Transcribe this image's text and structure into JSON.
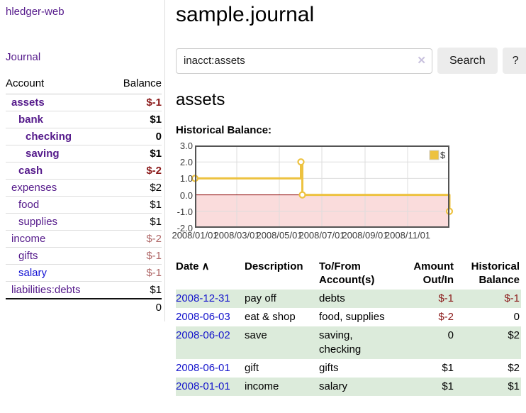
{
  "colors": {
    "brand_purple": "#551a8b",
    "link_blue": "#1414d4",
    "negative_strong": "#8b1a1a",
    "negative_soft": "#b06868",
    "row_stripe_green": "#dcebdb",
    "series_gold": "#edc240",
    "negative_region_pink": "#fadcdc",
    "zero_line_red": "#8b0000",
    "grid_gray": "#dddddd",
    "chart_border": "#545454"
  },
  "sidebar": {
    "brand": "hledger-web",
    "nav_journal": "Journal",
    "columns": {
      "account": "Account",
      "balance": "Balance"
    },
    "accounts": [
      {
        "name": "assets",
        "balance": "$-1",
        "level": 1,
        "bold": true,
        "link_style": "visited"
      },
      {
        "name": "bank",
        "balance": "$1",
        "level": 2,
        "bold": true,
        "link_style": "visited"
      },
      {
        "name": "checking",
        "balance": "0",
        "level": 3,
        "bold": true,
        "link_style": "visited"
      },
      {
        "name": "saving",
        "balance": "$1",
        "level": 3,
        "bold": true,
        "link_style": "visited"
      },
      {
        "name": "cash",
        "balance": "$-2",
        "level": 2,
        "bold": true,
        "link_style": "visited"
      },
      {
        "name": "expenses",
        "balance": "$2",
        "level": 1,
        "bold": false,
        "link_style": "visited"
      },
      {
        "name": "food",
        "balance": "$1",
        "level": 2,
        "bold": false,
        "link_style": "visited"
      },
      {
        "name": "supplies",
        "balance": "$1",
        "level": 2,
        "bold": false,
        "link_style": "visited"
      },
      {
        "name": "income",
        "balance": "$-2",
        "level": 1,
        "bold": false,
        "link_style": "visited"
      },
      {
        "name": "gifts",
        "balance": "$-1",
        "level": 2,
        "bold": false,
        "link_style": "visited"
      },
      {
        "name": "salary",
        "balance": "$-1",
        "level": 2,
        "bold": false,
        "link_style": "unvisited"
      },
      {
        "name": "liabilities:debts",
        "balance": "$1",
        "level": 1,
        "bold": false,
        "link_style": "visited"
      }
    ],
    "total": "0"
  },
  "main": {
    "title": "sample.journal",
    "account_title": "assets",
    "chart_label": "Historical Balance:"
  },
  "search": {
    "value": "inacct:assets",
    "button_label": "Search",
    "help_label": "?"
  },
  "icons": {
    "clear": "✕",
    "sort_ascending": "∧"
  },
  "chart_data": {
    "type": "line",
    "title": "Historical Balance",
    "xlabel": "",
    "ylabel": "",
    "legend": "$",
    "legend_position": "northeast",
    "grid": true,
    "ylim": [
      -2.0,
      3.0
    ],
    "xrange": [
      "2008-01-01",
      "2008-12-31"
    ],
    "yticks": [
      3.0,
      2.0,
      1.0,
      0.0,
      -1.0,
      -2.0
    ],
    "ytick_labels": [
      "3.0",
      "2.0",
      "1.0",
      "0.0",
      "-1.0",
      "-2.0"
    ],
    "xticks": [
      {
        "date": "2008-01-01",
        "label": "2008/01/01"
      },
      {
        "date": "2008-03-01",
        "label": "2008/03/01"
      },
      {
        "date": "2008-05-01",
        "label": "2008/05/01"
      },
      {
        "date": "2008-07-01",
        "label": "2008/07/01"
      },
      {
        "date": "2008-09-01",
        "label": "2008/09/01"
      },
      {
        "date": "2008-11-01",
        "label": "2008/11/01"
      }
    ],
    "series": [
      {
        "name": "$",
        "style": "step-after",
        "points": [
          [
            "2008-01-01",
            1.0
          ],
          [
            "2008-06-01",
            2.0
          ],
          [
            "2008-06-03",
            0.0
          ],
          [
            "2008-12-31",
            -1.0
          ]
        ]
      }
    ]
  },
  "register": {
    "columns": [
      "Date",
      "Description",
      "To/From Account(s)",
      "Amount Out/In",
      "Historical Balance"
    ],
    "rows": [
      {
        "date": "2008-12-31",
        "description": "pay off",
        "accounts": "debts",
        "amount": "$-1",
        "balance": "$-1"
      },
      {
        "date": "2008-06-03",
        "description": "eat & shop",
        "accounts": "food, supplies",
        "amount": "$-2",
        "balance": "0"
      },
      {
        "date": "2008-06-02",
        "description": "save",
        "accounts": "saving, checking",
        "amount": "0",
        "balance": "$2"
      },
      {
        "date": "2008-06-01",
        "description": "gift",
        "accounts": "gifts",
        "amount": "$1",
        "balance": "$2"
      },
      {
        "date": "2008-01-01",
        "description": "income",
        "accounts": "salary",
        "amount": "$1",
        "balance": "$1"
      }
    ]
  }
}
